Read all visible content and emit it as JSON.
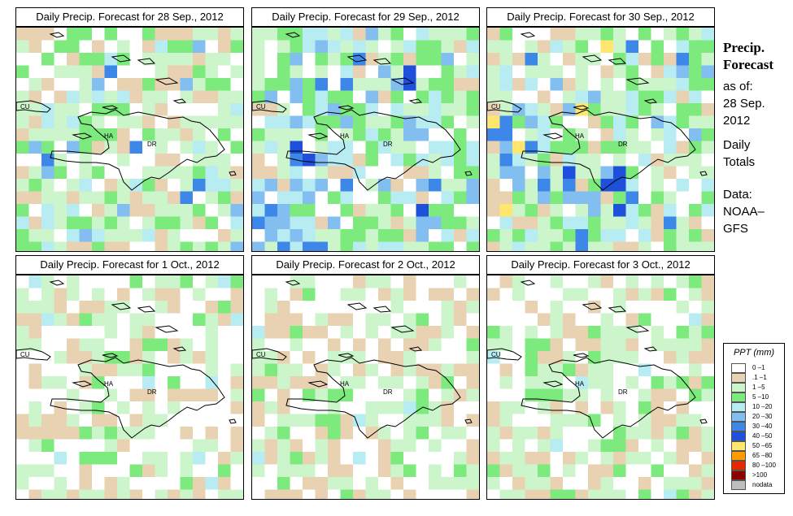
{
  "panels": [
    {
      "title": "Daily Precip. Forecast for  28 Sep., 2012",
      "seed": 11,
      "profile": "p1"
    },
    {
      "title": "Daily Precip. Forecast for  29 Sep., 2012",
      "seed": 23,
      "profile": "p2"
    },
    {
      "title": "Daily Precip. Forecast for  30 Sep., 2012",
      "seed": 37,
      "profile": "p3"
    },
    {
      "title": "Daily Precip. Forecast for  1 Oct., 2012",
      "seed": 41,
      "profile": "p4"
    },
    {
      "title": "Daily Precip. Forecast for  2 Oct., 2012",
      "seed": 53,
      "profile": "p5"
    },
    {
      "title": "Daily Precip. Forecast for  3 Oct., 2012",
      "seed": 67,
      "profile": "p6"
    }
  ],
  "map_labels": {
    "cuba": "CU",
    "haiti": "HA",
    "dominican_republic": "DR"
  },
  "side": {
    "title_line1": "Precip.",
    "title_line2": "Forecast",
    "asof": "as of:",
    "date_line1": "28 Sep.",
    "date_line2": "2012",
    "totals_line1": "Daily",
    "totals_line2": "Totals",
    "data_line1": "Data:",
    "data_line2": "NOAA–",
    "data_line3": "GFS"
  },
  "legend": {
    "title": "PPT (mm)",
    "items": [
      {
        "label": "0 –1",
        "color": "#ffffff"
      },
      {
        "label": ".1 –1",
        "color": "#e8d2b2"
      },
      {
        "label": "1 –5",
        "color": "#ccf5cc"
      },
      {
        "label": "5 –10",
        "color": "#7dea7d"
      },
      {
        "label": "10 –20",
        "color": "#b6ecf2"
      },
      {
        "label": "20 –30",
        "color": "#82bff0"
      },
      {
        "label": "30 –40",
        "color": "#3c87e8"
      },
      {
        "label": "40 –50",
        "color": "#1e50dc"
      },
      {
        "label": "50 –65",
        "color": "#ffe66e"
      },
      {
        "label": "65 –80",
        "color": "#ff9a00"
      },
      {
        "label": "80 –100",
        "color": "#e62800"
      },
      {
        "label": ">100",
        "color": "#8c0000"
      },
      {
        "label": "nodata",
        "color": "#bebebe"
      }
    ]
  }
}
